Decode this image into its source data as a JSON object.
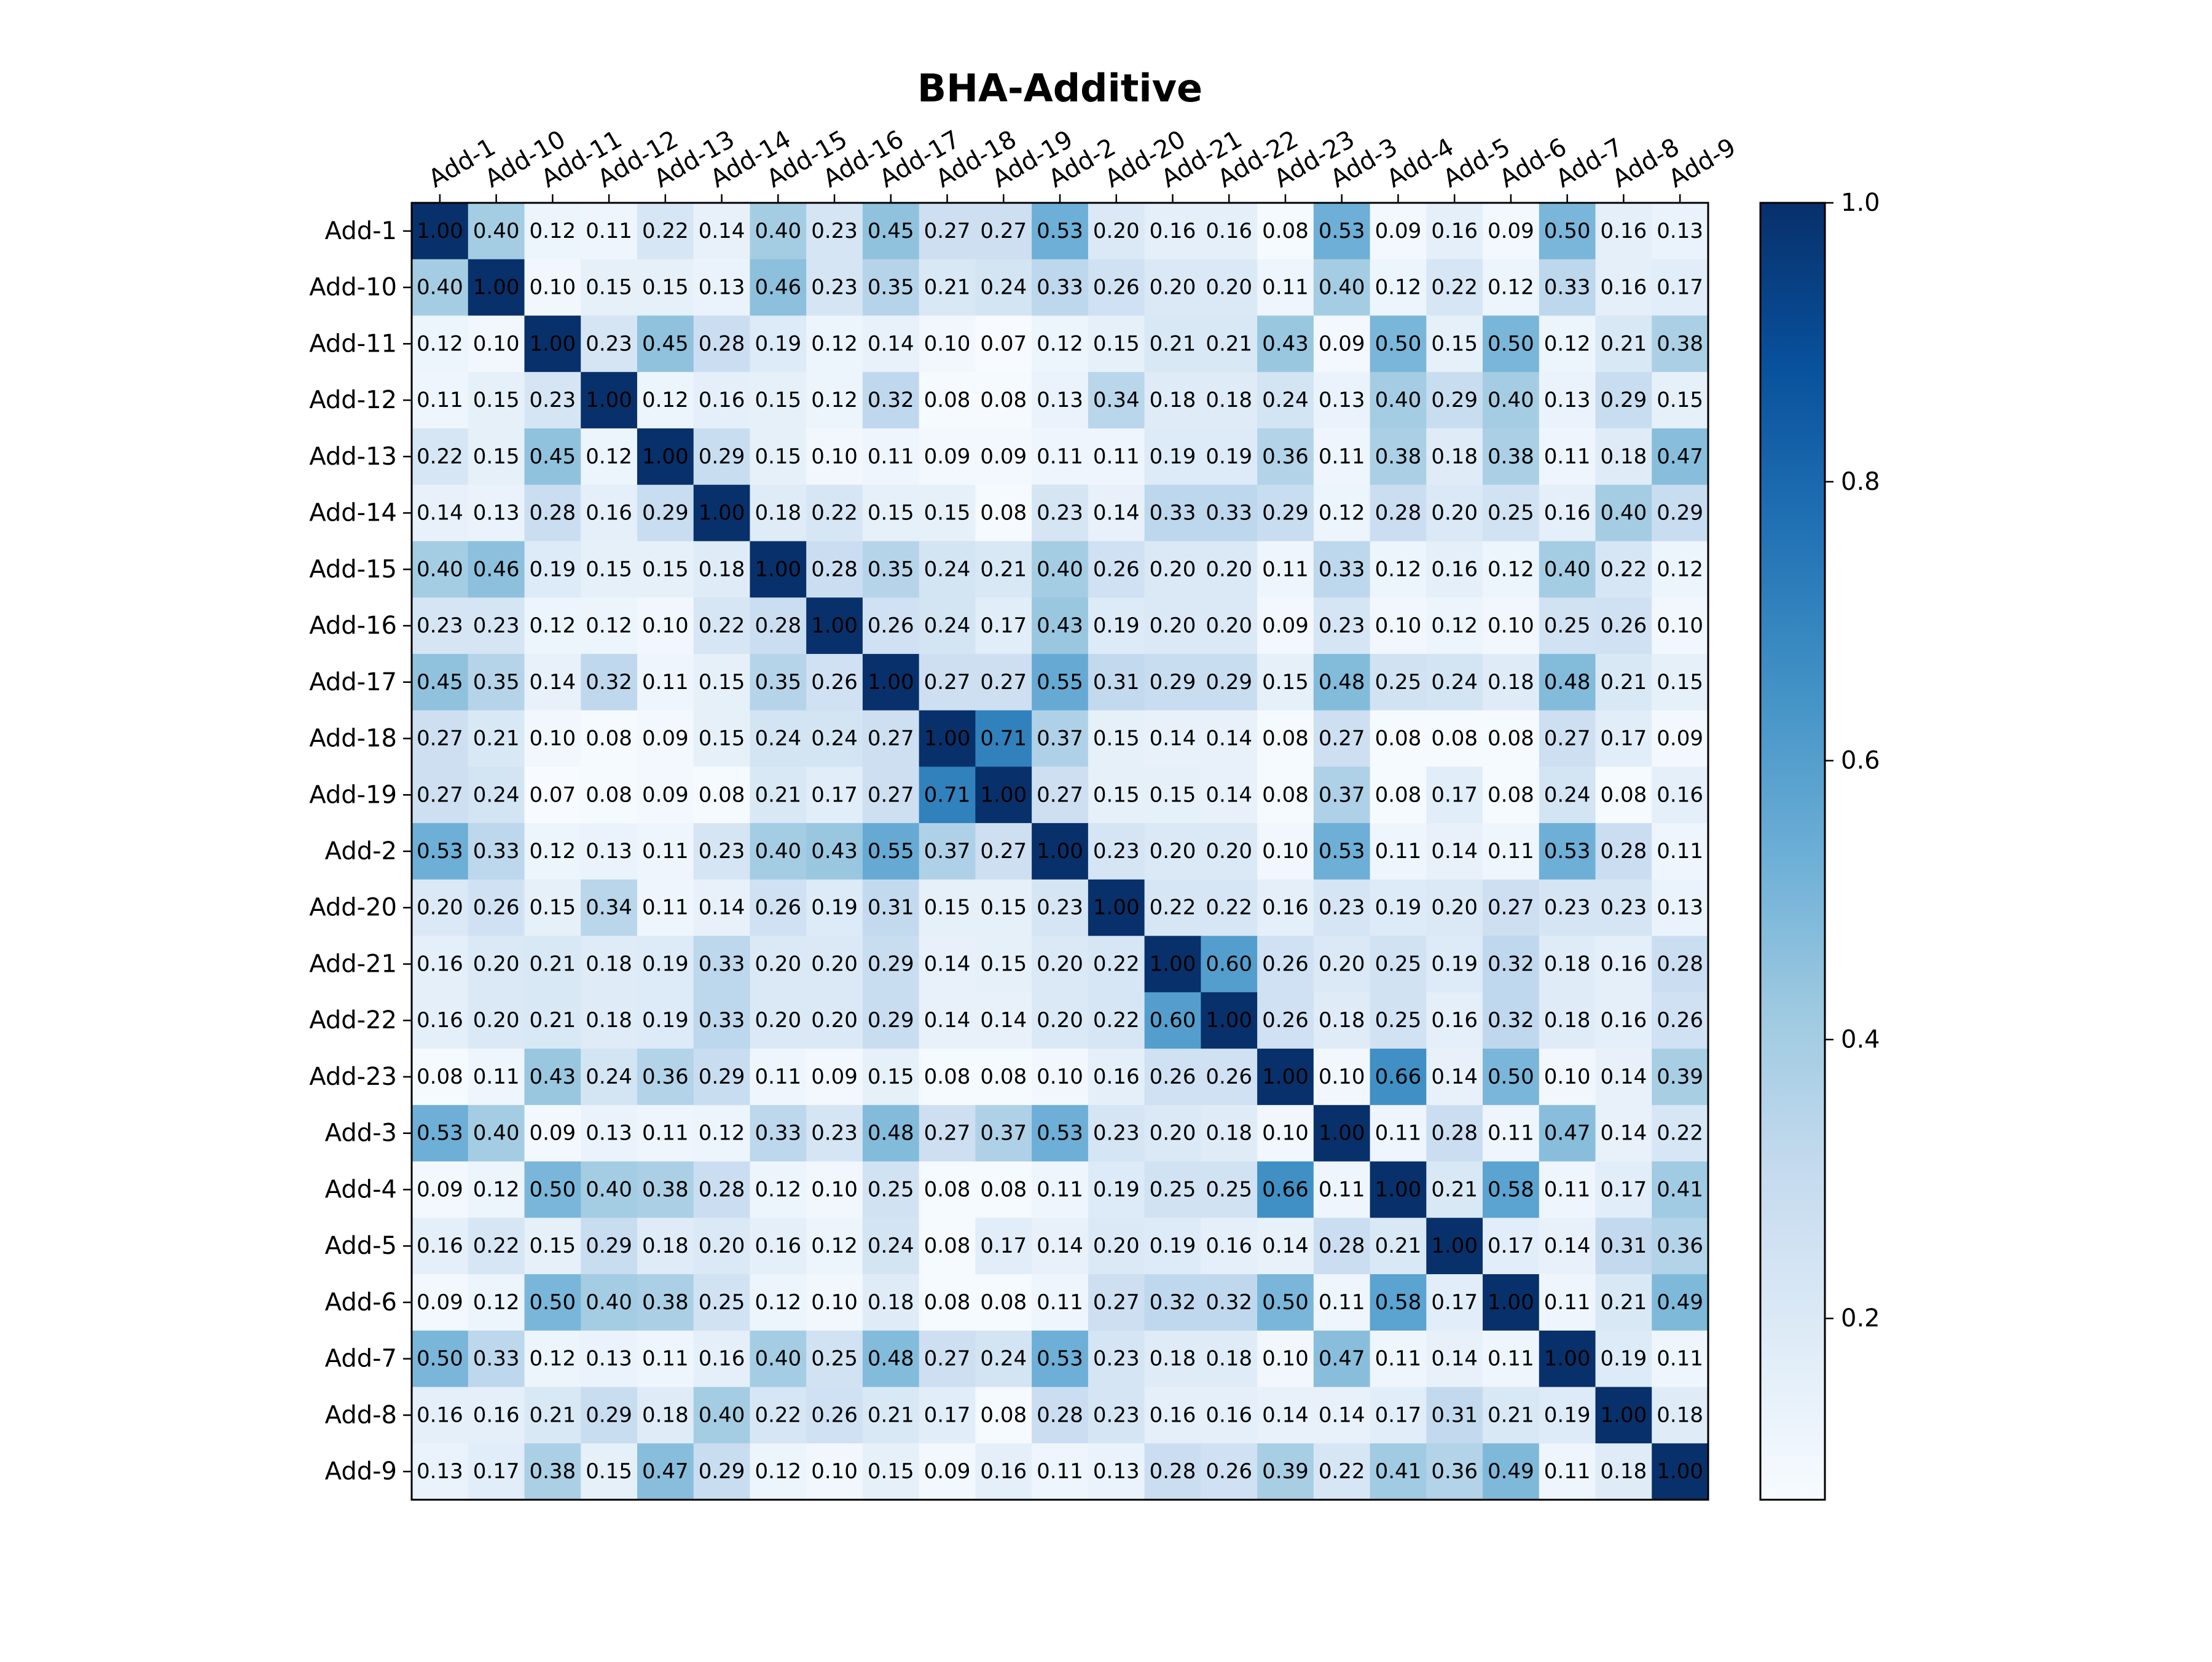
{
  "chart_data": {
    "type": "heatmap",
    "title": "BHA-Additive",
    "labels": [
      "Add-1",
      "Add-10",
      "Add-11",
      "Add-12",
      "Add-13",
      "Add-14",
      "Add-15",
      "Add-16",
      "Add-17",
      "Add-18",
      "Add-19",
      "Add-2",
      "Add-20",
      "Add-21",
      "Add-22",
      "Add-23",
      "Add-3",
      "Add-4",
      "Add-5",
      "Add-6",
      "Add-7",
      "Add-8",
      "Add-9"
    ],
    "values": [
      [
        1.0,
        0.4,
        0.12,
        0.11,
        0.22,
        0.14,
        0.4,
        0.23,
        0.45,
        0.27,
        0.27,
        0.53,
        0.2,
        0.16,
        0.16,
        0.08,
        0.53,
        0.09,
        0.16,
        0.09,
        0.5,
        0.16,
        0.13
      ],
      [
        0.4,
        1.0,
        0.1,
        0.15,
        0.15,
        0.13,
        0.46,
        0.23,
        0.35,
        0.21,
        0.24,
        0.33,
        0.26,
        0.2,
        0.2,
        0.11,
        0.4,
        0.12,
        0.22,
        0.12,
        0.33,
        0.16,
        0.17
      ],
      [
        0.12,
        0.1,
        1.0,
        0.23,
        0.45,
        0.28,
        0.19,
        0.12,
        0.14,
        0.1,
        0.07,
        0.12,
        0.15,
        0.21,
        0.21,
        0.43,
        0.09,
        0.5,
        0.15,
        0.5,
        0.12,
        0.21,
        0.38
      ],
      [
        0.11,
        0.15,
        0.23,
        1.0,
        0.12,
        0.16,
        0.15,
        0.12,
        0.32,
        0.08,
        0.08,
        0.13,
        0.34,
        0.18,
        0.18,
        0.24,
        0.13,
        0.4,
        0.29,
        0.4,
        0.13,
        0.29,
        0.15
      ],
      [
        0.22,
        0.15,
        0.45,
        0.12,
        1.0,
        0.29,
        0.15,
        0.1,
        0.11,
        0.09,
        0.09,
        0.11,
        0.11,
        0.19,
        0.19,
        0.36,
        0.11,
        0.38,
        0.18,
        0.38,
        0.11,
        0.18,
        0.47
      ],
      [
        0.14,
        0.13,
        0.28,
        0.16,
        0.29,
        1.0,
        0.18,
        0.22,
        0.15,
        0.15,
        0.08,
        0.23,
        0.14,
        0.33,
        0.33,
        0.29,
        0.12,
        0.28,
        0.2,
        0.25,
        0.16,
        0.4,
        0.29
      ],
      [
        0.4,
        0.46,
        0.19,
        0.15,
        0.15,
        0.18,
        1.0,
        0.28,
        0.35,
        0.24,
        0.21,
        0.4,
        0.26,
        0.2,
        0.2,
        0.11,
        0.33,
        0.12,
        0.16,
        0.12,
        0.4,
        0.22,
        0.12
      ],
      [
        0.23,
        0.23,
        0.12,
        0.12,
        0.1,
        0.22,
        0.28,
        1.0,
        0.26,
        0.24,
        0.17,
        0.43,
        0.19,
        0.2,
        0.2,
        0.09,
        0.23,
        0.1,
        0.12,
        0.1,
        0.25,
        0.26,
        0.1
      ],
      [
        0.45,
        0.35,
        0.14,
        0.32,
        0.11,
        0.15,
        0.35,
        0.26,
        1.0,
        0.27,
        0.27,
        0.55,
        0.31,
        0.29,
        0.29,
        0.15,
        0.48,
        0.25,
        0.24,
        0.18,
        0.48,
        0.21,
        0.15
      ],
      [
        0.27,
        0.21,
        0.1,
        0.08,
        0.09,
        0.15,
        0.24,
        0.24,
        0.27,
        1.0,
        0.71,
        0.37,
        0.15,
        0.14,
        0.14,
        0.08,
        0.27,
        0.08,
        0.08,
        0.08,
        0.27,
        0.17,
        0.09
      ],
      [
        0.27,
        0.24,
        0.07,
        0.08,
        0.09,
        0.08,
        0.21,
        0.17,
        0.27,
        0.71,
        1.0,
        0.27,
        0.15,
        0.15,
        0.14,
        0.08,
        0.37,
        0.08,
        0.17,
        0.08,
        0.24,
        0.08,
        0.16
      ],
      [
        0.53,
        0.33,
        0.12,
        0.13,
        0.11,
        0.23,
        0.4,
        0.43,
        0.55,
        0.37,
        0.27,
        1.0,
        0.23,
        0.2,
        0.2,
        0.1,
        0.53,
        0.11,
        0.14,
        0.11,
        0.53,
        0.28,
        0.11
      ],
      [
        0.2,
        0.26,
        0.15,
        0.34,
        0.11,
        0.14,
        0.26,
        0.19,
        0.31,
        0.15,
        0.15,
        0.23,
        1.0,
        0.22,
        0.22,
        0.16,
        0.23,
        0.19,
        0.2,
        0.27,
        0.23,
        0.23,
        0.13
      ],
      [
        0.16,
        0.2,
        0.21,
        0.18,
        0.19,
        0.33,
        0.2,
        0.2,
        0.29,
        0.14,
        0.15,
        0.2,
        0.22,
        1.0,
        0.6,
        0.26,
        0.2,
        0.25,
        0.19,
        0.32,
        0.18,
        0.16,
        0.28
      ],
      [
        0.16,
        0.2,
        0.21,
        0.18,
        0.19,
        0.33,
        0.2,
        0.2,
        0.29,
        0.14,
        0.14,
        0.2,
        0.22,
        0.6,
        1.0,
        0.26,
        0.18,
        0.25,
        0.16,
        0.32,
        0.18,
        0.16,
        0.26
      ],
      [
        0.08,
        0.11,
        0.43,
        0.24,
        0.36,
        0.29,
        0.11,
        0.09,
        0.15,
        0.08,
        0.08,
        0.1,
        0.16,
        0.26,
        0.26,
        1.0,
        0.1,
        0.66,
        0.14,
        0.5,
        0.1,
        0.14,
        0.39
      ],
      [
        0.53,
        0.4,
        0.09,
        0.13,
        0.11,
        0.12,
        0.33,
        0.23,
        0.48,
        0.27,
        0.37,
        0.53,
        0.23,
        0.2,
        0.18,
        0.1,
        1.0,
        0.11,
        0.28,
        0.11,
        0.47,
        0.14,
        0.22
      ],
      [
        0.09,
        0.12,
        0.5,
        0.4,
        0.38,
        0.28,
        0.12,
        0.1,
        0.25,
        0.08,
        0.08,
        0.11,
        0.19,
        0.25,
        0.25,
        0.66,
        0.11,
        1.0,
        0.21,
        0.58,
        0.11,
        0.17,
        0.41
      ],
      [
        0.16,
        0.22,
        0.15,
        0.29,
        0.18,
        0.2,
        0.16,
        0.12,
        0.24,
        0.08,
        0.17,
        0.14,
        0.2,
        0.19,
        0.16,
        0.14,
        0.28,
        0.21,
        1.0,
        0.17,
        0.14,
        0.31,
        0.36
      ],
      [
        0.09,
        0.12,
        0.5,
        0.4,
        0.38,
        0.25,
        0.12,
        0.1,
        0.18,
        0.08,
        0.08,
        0.11,
        0.27,
        0.32,
        0.32,
        0.5,
        0.11,
        0.58,
        0.17,
        1.0,
        0.11,
        0.21,
        0.49
      ],
      [
        0.5,
        0.33,
        0.12,
        0.13,
        0.11,
        0.16,
        0.4,
        0.25,
        0.48,
        0.27,
        0.24,
        0.53,
        0.23,
        0.18,
        0.18,
        0.1,
        0.47,
        0.11,
        0.14,
        0.11,
        1.0,
        0.19,
        0.11
      ],
      [
        0.16,
        0.16,
        0.21,
        0.29,
        0.18,
        0.4,
        0.22,
        0.26,
        0.21,
        0.17,
        0.08,
        0.28,
        0.23,
        0.16,
        0.16,
        0.14,
        0.14,
        0.17,
        0.31,
        0.21,
        0.19,
        1.0,
        0.18
      ],
      [
        0.13,
        0.17,
        0.38,
        0.15,
        0.47,
        0.29,
        0.12,
        0.1,
        0.15,
        0.09,
        0.16,
        0.11,
        0.13,
        0.28,
        0.26,
        0.39,
        0.22,
        0.41,
        0.36,
        0.49,
        0.11,
        0.18,
        1.0
      ]
    ],
    "value_range": [
      0.07,
      1.0
    ],
    "colormap": "Blues",
    "colorbar": {
      "ticks": [
        0.2,
        0.4,
        0.6,
        0.8,
        1.0
      ],
      "tick_labels": [
        "0.2",
        "0.4",
        "0.6",
        "0.8",
        "1.0"
      ]
    },
    "cell_label_format": "0.00",
    "x_labels_position": "top",
    "grid": false
  }
}
